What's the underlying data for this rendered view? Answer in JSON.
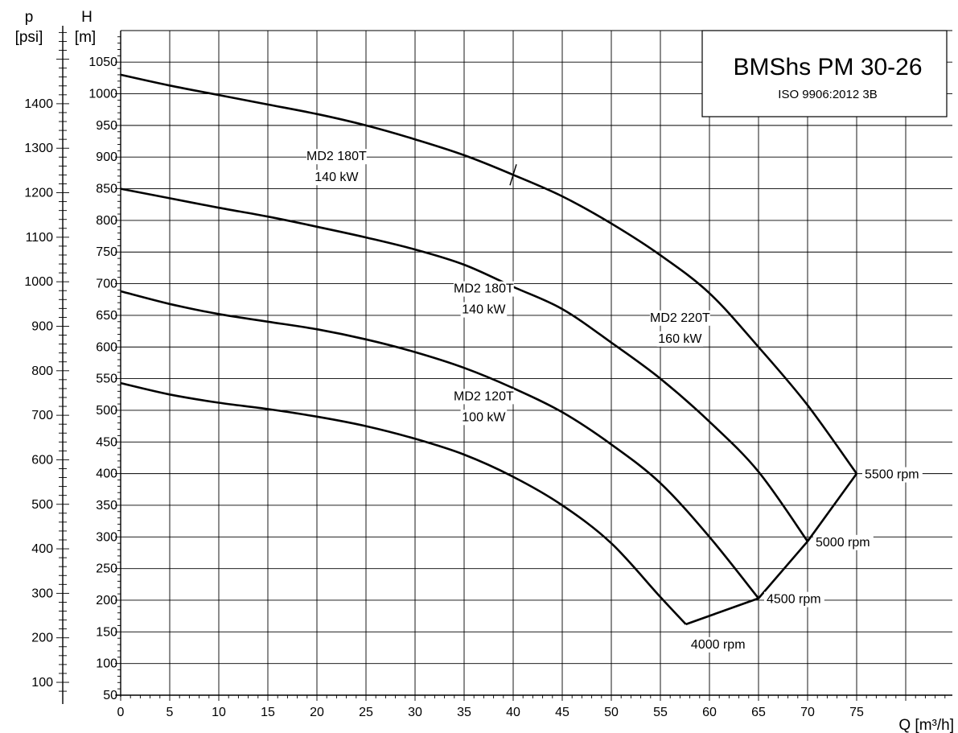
{
  "chart_data": {
    "type": "line",
    "title": "BMShs PM 30-26",
    "subtitle": "ISO 9906:2012 3B",
    "xlabel": "Q [m³/h]",
    "ylabel": "H",
    "ylabel_unit": "[m]",
    "y2label": "p",
    "y2label_unit": "[psi]",
    "xlim": [
      0,
      85
    ],
    "ylim": [
      50,
      1090
    ],
    "x_ticks": [
      0,
      5,
      10,
      15,
      20,
      25,
      30,
      35,
      40,
      45,
      50,
      55,
      60,
      65,
      70,
      75
    ],
    "y_ticks": [
      50,
      100,
      150,
      200,
      250,
      300,
      350,
      400,
      450,
      500,
      550,
      600,
      650,
      700,
      750,
      800,
      850,
      900,
      950,
      1000,
      1050
    ],
    "psi_ticks": [
      100,
      200,
      300,
      400,
      500,
      600,
      700,
      800,
      900,
      1000,
      1100,
      1200,
      1300,
      1400
    ],
    "grid": true,
    "series": [
      {
        "name": "4000 rpm",
        "x": [
          0,
          5,
          10,
          15,
          20,
          25,
          30,
          35,
          40,
          45,
          50,
          55,
          57.6
        ],
        "y": [
          543,
          525,
          512,
          502,
          490,
          475,
          455,
          430,
          395,
          350,
          290,
          205,
          162
        ]
      },
      {
        "name": "4500 rpm",
        "x": [
          0,
          5,
          10,
          15,
          20,
          25,
          30,
          35,
          40,
          45,
          50,
          55,
          60,
          65
        ],
        "y": [
          688,
          668,
          652,
          640,
          628,
          612,
          592,
          567,
          535,
          497,
          446,
          385,
          300,
          203
        ]
      },
      {
        "name": "5000 rpm",
        "x": [
          0,
          5,
          10,
          15,
          20,
          25,
          30,
          35,
          40,
          45,
          50,
          55,
          60,
          65,
          70
        ],
        "y": [
          850,
          835,
          820,
          806,
          790,
          773,
          754,
          730,
          695,
          660,
          607,
          550,
          482,
          403,
          293
        ]
      },
      {
        "name": "5500 rpm",
        "x": [
          0,
          5,
          10,
          15,
          20,
          25,
          30,
          35,
          40,
          45,
          50,
          55,
          60,
          65,
          70,
          75
        ],
        "y": [
          1030,
          1013,
          998,
          983,
          968,
          950,
          928,
          903,
          872,
          838,
          795,
          745,
          685,
          600,
          508,
          400
        ]
      },
      {
        "name": "rated line",
        "x": [
          57.6,
          65,
          70,
          75
        ],
        "y": [
          162,
          203,
          293,
          400
        ]
      }
    ],
    "annotations": [
      {
        "text": "MD2 180T",
        "x": 22,
        "y": 895
      },
      {
        "text": "140 kW",
        "x": 22,
        "y": 862
      },
      {
        "text": "MD2 180T",
        "x": 37,
        "y": 686
      },
      {
        "text": "140 kW",
        "x": 37,
        "y": 653
      },
      {
        "text": "MD2 220T",
        "x": 57,
        "y": 640
      },
      {
        "text": "160 kW",
        "x": 57,
        "y": 607
      },
      {
        "text": "MD2 120T",
        "x": 37,
        "y": 516
      },
      {
        "text": "100 kW",
        "x": 37,
        "y": 483
      }
    ],
    "rpm_labels": [
      {
        "text": "4000 rpm",
        "x": 57.6,
        "y": 162
      },
      {
        "text": "4500 rpm",
        "x": 65,
        "y": 203
      },
      {
        "text": "5000 rpm",
        "x": 70,
        "y": 293
      },
      {
        "text": "5500 rpm",
        "x": 75,
        "y": 400
      }
    ],
    "colors": {
      "curve": "#000000",
      "grid": "#000000",
      "background": "#ffffff"
    }
  }
}
